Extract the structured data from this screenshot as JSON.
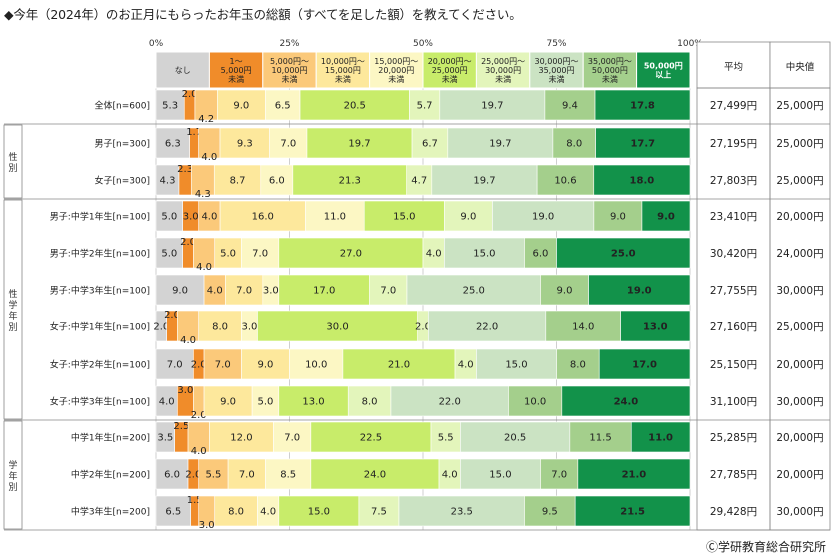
{
  "title": "◆今年（2024年）のお正月にもらったお年玉の総額（すべてを足した額）を教えてください。",
  "footer": "Ⓒ学研教育総合研究所",
  "chart_data": {
    "type": "bar",
    "orientation": "horizontal",
    "stacked": true,
    "xlim": [
      0,
      100
    ],
    "ticks": [
      "0%",
      "25%",
      "50%",
      "75%",
      "100%"
    ],
    "tick_values": [
      0,
      25,
      50,
      75,
      100
    ],
    "grid": true,
    "legend_placement": "top",
    "series": [
      {
        "name": "なし",
        "color": "#d3d3d3",
        "text_color": "#222"
      },
      {
        "name": "1～\n5,000円\n未満",
        "color": "#f08c2a",
        "text_color": "#222"
      },
      {
        "name": "5,000円～\n10,000円\n未満",
        "color": "#fbc97a",
        "text_color": "#222"
      },
      {
        "name": "10,000円～\n15,000円\n未満",
        "color": "#fde89c",
        "text_color": "#222"
      },
      {
        "name": "15,000円～\n20,000円\n未満",
        "color": "#fcf7c4",
        "text_color": "#222"
      },
      {
        "name": "20,000円～\n25,000円\n未満",
        "color": "#c8ec6a",
        "text_color": "#222"
      },
      {
        "name": "25,000円～\n30,000円\n未満",
        "color": "#e3f5bb",
        "text_color": "#222"
      },
      {
        "name": "30,000円～\n35,000円\n未満",
        "color": "#cbe3c3",
        "text_color": "#222"
      },
      {
        "name": "35,000円～\n50,000円\n未満",
        "color": "#a4cf8c",
        "text_color": "#222"
      },
      {
        "name": "50,000円\n以上",
        "color": "#12924a",
        "text_color": "#ffffff"
      }
    ],
    "groups": [
      {
        "label": "",
        "rows": [
          0
        ]
      },
      {
        "label": "性別",
        "rows": [
          1,
          2
        ]
      },
      {
        "label": "性学年別",
        "rows": [
          3,
          4,
          5,
          6,
          7,
          8
        ]
      },
      {
        "label": "学年別",
        "rows": [
          9,
          10,
          11
        ]
      }
    ],
    "rows": [
      {
        "label": "全体[n=600]",
        "values": [
          5.3,
          2.0,
          4.2,
          9.0,
          6.5,
          20.5,
          5.7,
          19.7,
          9.4,
          17.8
        ],
        "labels": [
          "5.3",
          "2.0",
          "4.2",
          "9.0",
          "6.5",
          "20.5",
          "5.7",
          "19.7",
          "9.4",
          "17.8"
        ],
        "label_pos": [
          "m",
          "a",
          "b",
          "m",
          "m",
          "m",
          "m",
          "m",
          "m",
          "m"
        ],
        "average": "27,499円",
        "median": "25,000円"
      },
      {
        "label": "男子[n=300]",
        "values": [
          6.3,
          1.7,
          4.0,
          9.3,
          7.0,
          19.7,
          6.7,
          19.7,
          8.0,
          17.7
        ],
        "labels": [
          "6.3",
          "1.7",
          "4.0",
          "9.3",
          "7.0",
          "19.7",
          "6.7",
          "19.7",
          "8.0",
          "17.7"
        ],
        "label_pos": [
          "m",
          "a",
          "b",
          "m",
          "m",
          "m",
          "m",
          "m",
          "m",
          "m"
        ],
        "average": "27,195円",
        "median": "25,000円"
      },
      {
        "label": "女子[n=300]",
        "values": [
          4.3,
          2.3,
          4.3,
          8.7,
          6.0,
          21.3,
          4.7,
          19.7,
          10.6,
          18.0
        ],
        "labels": [
          "4.3",
          "2.3",
          "4.3",
          "8.7",
          "6.0",
          "21.3",
          "4.7",
          "19.7",
          "10.6",
          "18.0"
        ],
        "label_pos": [
          "m",
          "a",
          "b",
          "m",
          "m",
          "m",
          "m",
          "m",
          "m",
          "m"
        ],
        "average": "27,803円",
        "median": "25,000円"
      },
      {
        "label": "男子:中学1年生[n=100]",
        "values": [
          5.0,
          3.0,
          4.0,
          16.0,
          11.0,
          15.0,
          9.0,
          19.0,
          9.0,
          9.0
        ],
        "labels": [
          "5.0",
          "3.0",
          "4.0",
          "16.0",
          "11.0",
          "15.0",
          "9.0",
          "19.0",
          "9.0",
          "9.0"
        ],
        "label_pos": [
          "m",
          "m",
          "m",
          "m",
          "m",
          "m",
          "m",
          "m",
          "m",
          "m"
        ],
        "average": "23,410円",
        "median": "20,000円"
      },
      {
        "label": "男子:中学2年生[n=100]",
        "values": [
          5.0,
          2.0,
          4.0,
          5.0,
          7.0,
          27.0,
          4.0,
          15.0,
          6.0,
          25.0
        ],
        "labels": [
          "5.0",
          "2.0",
          "4.0",
          "5.0",
          "7.0",
          "27.0",
          "4.0",
          "15.0",
          "6.0",
          "25.0"
        ],
        "label_pos": [
          "m",
          "a",
          "b",
          "m",
          "m",
          "m",
          "m",
          "m",
          "m",
          "m"
        ],
        "average": "30,420円",
        "median": "24,000円"
      },
      {
        "label": "男子:中学3年生[n=100]",
        "values": [
          9.0,
          0,
          4.0,
          7.0,
          3.0,
          17.0,
          7.0,
          25.0,
          9.0,
          19.0
        ],
        "labels": [
          "9.0",
          "",
          "4.0",
          "7.0",
          "3.0",
          "17.0",
          "7.0",
          "25.0",
          "9.0",
          "19.0"
        ],
        "label_pos": [
          "m",
          "m",
          "m",
          "m",
          "m",
          "m",
          "m",
          "m",
          "m",
          "m"
        ],
        "average": "27,755円",
        "median": "30,000円"
      },
      {
        "label": "女子:中学1年生[n=100]",
        "values": [
          2.0,
          2.0,
          4.0,
          8.0,
          3.0,
          30.0,
          2.0,
          22.0,
          14.0,
          13.0
        ],
        "labels": [
          "2.0",
          "2.0",
          "4.0",
          "8.0",
          "3.0",
          "30.0",
          "2.0",
          "22.0",
          "14.0",
          "13.0"
        ],
        "label_pos": [
          "m",
          "a",
          "b",
          "m",
          "m",
          "m",
          "m",
          "m",
          "m",
          "m"
        ],
        "average": "27,160円",
        "median": "25,000円"
      },
      {
        "label": "女子:中学2年生[n=100]",
        "values": [
          7.0,
          2.0,
          7.0,
          9.0,
          10.0,
          21.0,
          4.0,
          15.0,
          8.0,
          17.0
        ],
        "labels": [
          "7.0",
          "2.0",
          "7.0",
          "9.0",
          "10.0",
          "21.0",
          "4.0",
          "15.0",
          "8.0",
          "17.0"
        ],
        "label_pos": [
          "m",
          "m",
          "m",
          "m",
          "m",
          "m",
          "m",
          "m",
          "m",
          "m"
        ],
        "average": "25,150円",
        "median": "20,000円"
      },
      {
        "label": "女子:中学3年生[n=100]",
        "values": [
          4.0,
          3.0,
          2.0,
          9.0,
          5.0,
          13.0,
          8.0,
          22.0,
          10.0,
          24.0
        ],
        "labels": [
          "4.0",
          "3.0",
          "2.0",
          "9.0",
          "5.0",
          "13.0",
          "8.0",
          "22.0",
          "10.0",
          "24.0"
        ],
        "label_pos": [
          "m",
          "a",
          "b",
          "m",
          "m",
          "m",
          "m",
          "m",
          "m",
          "m"
        ],
        "average": "31,100円",
        "median": "30,000円"
      },
      {
        "label": "中学1年生[n=200]",
        "values": [
          3.5,
          2.5,
          4.0,
          12.0,
          7.0,
          22.5,
          5.5,
          20.5,
          11.5,
          11.0
        ],
        "labels": [
          "3.5",
          "2.5",
          "4.0",
          "12.0",
          "7.0",
          "22.5",
          "5.5",
          "20.5",
          "11.5",
          "11.0"
        ],
        "label_pos": [
          "m",
          "a",
          "b",
          "m",
          "m",
          "m",
          "m",
          "m",
          "m",
          "m"
        ],
        "average": "25,285円",
        "median": "20,000円"
      },
      {
        "label": "中学2年生[n=200]",
        "values": [
          6.0,
          2.0,
          5.5,
          7.0,
          8.5,
          24.0,
          4.0,
          15.0,
          7.0,
          21.0
        ],
        "labels": [
          "6.0",
          "2.0",
          "5.5",
          "7.0",
          "8.5",
          "24.0",
          "4.0",
          "15.0",
          "7.0",
          "21.0"
        ],
        "label_pos": [
          "m",
          "m",
          "m",
          "m",
          "m",
          "m",
          "m",
          "m",
          "m",
          "m"
        ],
        "average": "27,785円",
        "median": "20,000円"
      },
      {
        "label": "中学3年生[n=200]",
        "values": [
          6.5,
          1.5,
          3.0,
          8.0,
          4.0,
          15.0,
          7.5,
          23.5,
          9.5,
          21.5
        ],
        "labels": [
          "6.5",
          "1.5",
          "3.0",
          "8.0",
          "4.0",
          "15.0",
          "7.5",
          "23.5",
          "9.5",
          "21.5"
        ],
        "label_pos": [
          "m",
          "a",
          "b",
          "m",
          "m",
          "m",
          "m",
          "m",
          "m",
          "m"
        ],
        "average": "29,428円",
        "median": "30,000円"
      }
    ],
    "stats_headers": [
      "平均",
      "中央値"
    ]
  }
}
